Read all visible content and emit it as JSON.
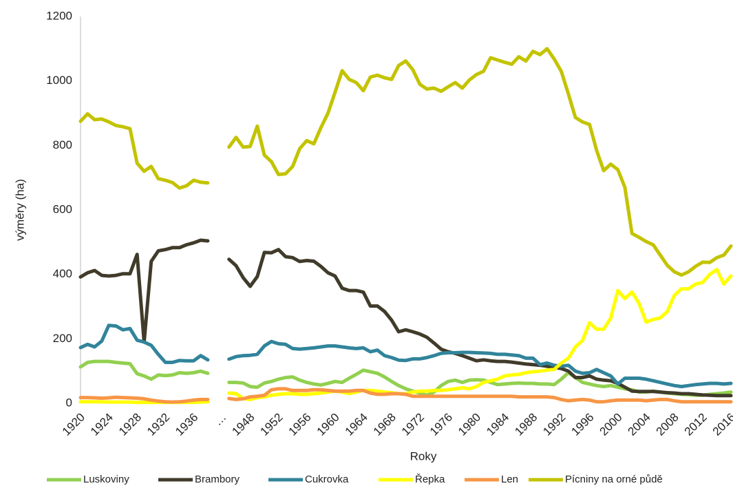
{
  "chart_data": {
    "type": "line",
    "xlabel": "Roky",
    "ylabel": "výměry (ha)",
    "categories": [
      "1920",
      null,
      null,
      null,
      "1924",
      null,
      null,
      null,
      "1928",
      null,
      null,
      null,
      "1932",
      null,
      null,
      null,
      "1936",
      null,
      null,
      null,
      "…",
      null,
      null,
      null,
      "1948",
      null,
      null,
      null,
      "1952",
      null,
      null,
      null,
      "1956",
      null,
      null,
      null,
      "1960",
      null,
      null,
      null,
      "1964",
      null,
      null,
      null,
      "1968",
      null,
      null,
      null,
      "1972",
      null,
      null,
      null,
      "1976",
      null,
      null,
      null,
      "1980",
      null,
      null,
      null,
      "1984",
      null,
      null,
      null,
      "1988",
      null,
      null,
      null,
      "1992",
      null,
      null,
      null,
      "1996",
      null,
      null,
      null,
      "2000",
      null,
      null,
      null,
      "2004",
      null,
      null,
      null,
      "2008",
      null,
      null,
      null,
      "2012",
      null,
      null,
      null,
      "2016"
    ],
    "ylim": [
      0,
      1200
    ],
    "yticks": [
      0,
      200,
      400,
      600,
      800,
      1000,
      1200
    ],
    "legend": "bottom",
    "series": [
      {
        "name": "Luskoviny",
        "color": "#92d050",
        "values": [
          113,
          127,
          130,
          130,
          130,
          127,
          125,
          123,
          92,
          85,
          75,
          88,
          86,
          88,
          95,
          93,
          95,
          100,
          93,
          null,
          null,
          65,
          65,
          63,
          52,
          50,
          63,
          68,
          75,
          80,
          82,
          72,
          65,
          60,
          57,
          62,
          68,
          65,
          78,
          90,
          103,
          98,
          93,
          82,
          68,
          55,
          45,
          38,
          32,
          25,
          35,
          55,
          68,
          72,
          65,
          72,
          73,
          72,
          65,
          58,
          60,
          62,
          63,
          62,
          62,
          60,
          60,
          58,
          75,
          95,
          80,
          65,
          60,
          55,
          52,
          55,
          50,
          45,
          42,
          35,
          35,
          38,
          35,
          32,
          30,
          28,
          27,
          25,
          25,
          28,
          30,
          32,
          35
        ]
      },
      {
        "name": "Brambory",
        "color": "#403b2a",
        "values": [
          392,
          405,
          412,
          397,
          395,
          397,
          402,
          402,
          462,
          190,
          440,
          473,
          477,
          483,
          483,
          492,
          498,
          506,
          504,
          null,
          null,
          447,
          427,
          390,
          363,
          393,
          468,
          467,
          477,
          455,
          452,
          440,
          443,
          441,
          425,
          405,
          395,
          357,
          350,
          350,
          345,
          302,
          302,
          285,
          258,
          222,
          228,
          222,
          215,
          205,
          187,
          168,
          160,
          155,
          148,
          140,
          132,
          135,
          132,
          130,
          130,
          128,
          125,
          122,
          120,
          118,
          115,
          112,
          108,
          100,
          80,
          80,
          85,
          75,
          72,
          70,
          62,
          50,
          38,
          37,
          37,
          37,
          35,
          33,
          32,
          30,
          30,
          28,
          26,
          25,
          24,
          24,
          24
        ]
      },
      {
        "name": "Cukrovka",
        "color": "#31849b",
        "values": [
          173,
          183,
          175,
          193,
          242,
          240,
          228,
          232,
          196,
          190,
          180,
          152,
          127,
          127,
          133,
          132,
          132,
          148,
          135,
          null,
          null,
          137,
          145,
          148,
          149,
          152,
          178,
          192,
          185,
          183,
          170,
          168,
          170,
          172,
          175,
          178,
          178,
          175,
          172,
          170,
          172,
          160,
          165,
          148,
          142,
          134,
          133,
          138,
          138,
          142,
          148,
          155,
          157,
          157,
          158,
          158,
          157,
          156,
          155,
          152,
          152,
          150,
          148,
          140,
          140,
          120,
          125,
          118,
          115,
          118,
          100,
          93,
          95,
          105,
          95,
          85,
          60,
          78,
          78,
          78,
          75,
          70,
          65,
          60,
          55,
          52,
          55,
          58,
          60,
          62,
          62,
          60,
          62
        ]
      },
      {
        "name": "Řepka",
        "color": "#ffff00",
        "values": [
          5,
          5,
          5,
          5,
          4,
          4,
          4,
          4,
          3,
          3,
          3,
          3,
          3,
          3,
          3,
          3,
          3,
          4,
          5,
          null,
          null,
          32,
          30,
          15,
          12,
          18,
          20,
          25,
          28,
          30,
          30,
          28,
          28,
          30,
          32,
          35,
          38,
          35,
          30,
          35,
          40,
          40,
          38,
          35,
          33,
          30,
          30,
          35,
          38,
          38,
          40,
          40,
          42,
          45,
          48,
          45,
          52,
          65,
          70,
          75,
          85,
          88,
          90,
          95,
          98,
          100,
          103,
          105,
          125,
          140,
          175,
          195,
          250,
          230,
          230,
          265,
          350,
          325,
          345,
          310,
          252,
          260,
          265,
          285,
          335,
          355,
          355,
          370,
          375,
          400,
          415,
          370,
          395
        ]
      },
      {
        "name": "Len",
        "color": "#f79646",
        "values": [
          18,
          18,
          17,
          16,
          17,
          19,
          18,
          17,
          16,
          14,
          10,
          7,
          5,
          4,
          5,
          7,
          10,
          12,
          12,
          null,
          null,
          15,
          12,
          14,
          20,
          22,
          25,
          42,
          45,
          45,
          40,
          40,
          40,
          42,
          42,
          40,
          38,
          38,
          38,
          40,
          40,
          32,
          28,
          28,
          30,
          30,
          28,
          22,
          22,
          22,
          22,
          22,
          22,
          22,
          22,
          22,
          22,
          22,
          22,
          22,
          22,
          22,
          20,
          20,
          20,
          20,
          20,
          18,
          12,
          8,
          10,
          12,
          10,
          5,
          5,
          8,
          10,
          10,
          10,
          10,
          8,
          10,
          12,
          12,
          8,
          5,
          5,
          5,
          5,
          5,
          5,
          5,
          5
        ]
      },
      {
        "name": "Pícniny na orné půdě",
        "color": "#c3c300",
        "values": [
          875,
          898,
          880,
          882,
          873,
          862,
          858,
          852,
          745,
          720,
          735,
          697,
          692,
          685,
          668,
          675,
          692,
          686,
          684,
          null,
          null,
          795,
          825,
          795,
          797,
          860,
          770,
          750,
          710,
          712,
          735,
          790,
          815,
          805,
          855,
          900,
          965,
          1032,
          1005,
          995,
          970,
          1012,
          1018,
          1010,
          1005,
          1048,
          1062,
          1035,
          990,
          975,
          978,
          968,
          982,
          995,
          978,
          1003,
          1020,
          1030,
          1072,
          1065,
          1058,
          1052,
          1075,
          1062,
          1092,
          1082,
          1100,
          1068,
          1030,
          960,
          887,
          873,
          865,
          785,
          722,
          742,
          725,
          670,
          527,
          515,
          502,
          492,
          460,
          428,
          408,
          398,
          408,
          425,
          438,
          437,
          452,
          460,
          488
        ]
      }
    ]
  }
}
